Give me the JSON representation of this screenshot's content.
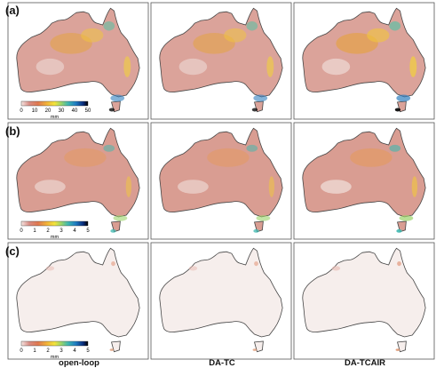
{
  "figure": {
    "row_labels": [
      "(a)",
      "(b)",
      "(c)"
    ],
    "column_labels": [
      "open-loop",
      "DA-TC",
      "DA-TCAIR"
    ],
    "colorbars": [
      {
        "ticks": [
          "0",
          "10",
          "20",
          "30",
          "40",
          "50"
        ],
        "unit": "mm"
      },
      {
        "ticks": [
          "0",
          "1",
          "2",
          "3",
          "4",
          "5"
        ],
        "unit": "mm"
      },
      {
        "ticks": [
          "0",
          "1",
          "2",
          "3",
          "4",
          "5"
        ],
        "unit": "mm"
      }
    ]
  },
  "colors": {
    "scale": [
      "#f6e6e2",
      "#d98c84",
      "#e07850",
      "#f2b13a",
      "#f3e43c",
      "#9bd46a",
      "#3fb8b0",
      "#1f7bc2",
      "#0a2b7a",
      "#000000"
    ]
  }
}
